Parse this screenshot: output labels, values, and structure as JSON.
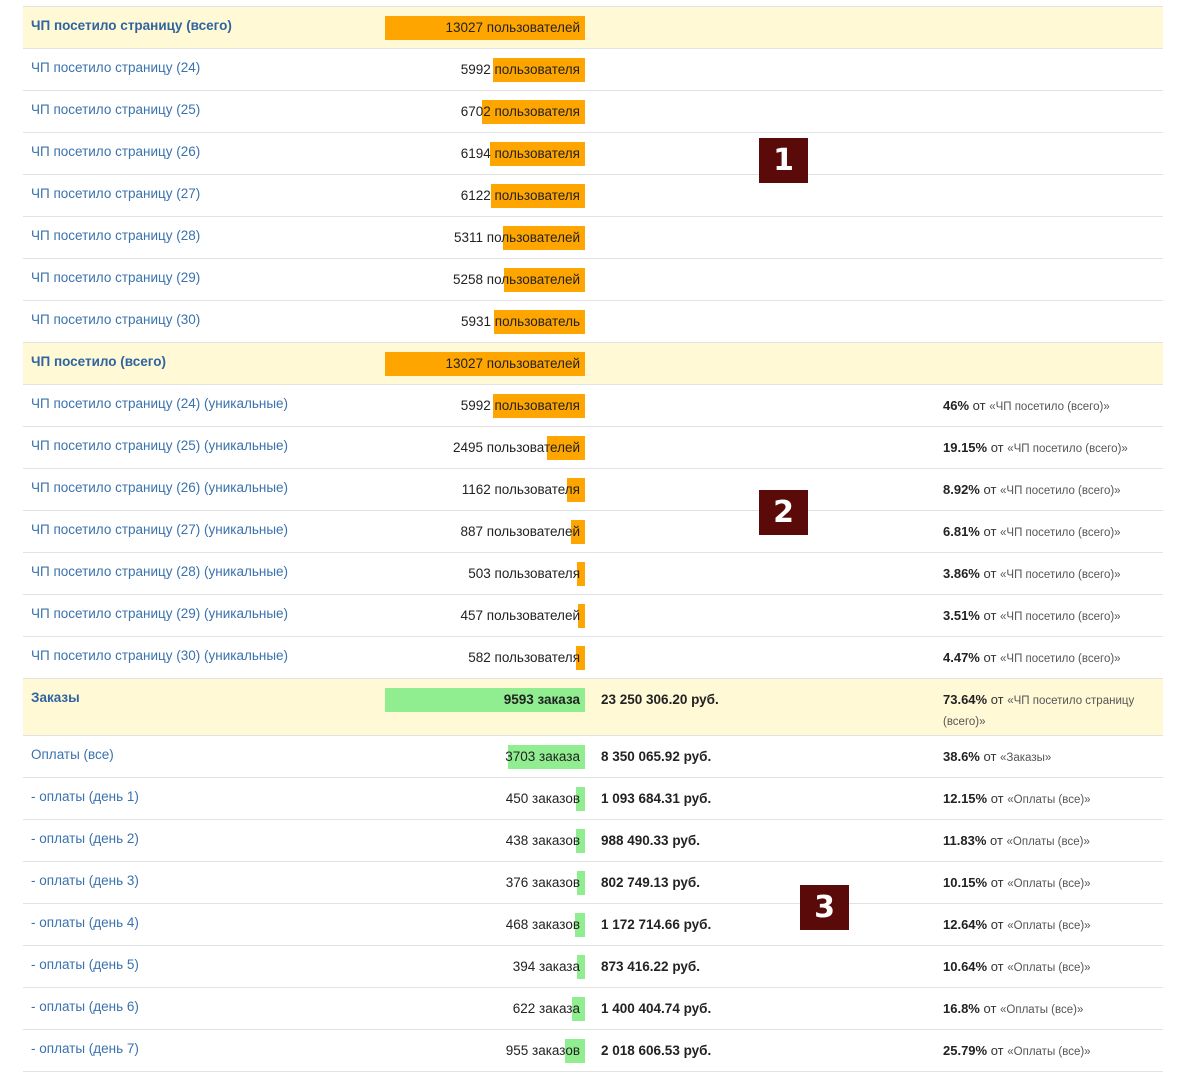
{
  "rows": [
    {
      "label": "ЧП посетило страницу (всего)",
      "count": "13027 пользователей",
      "fill": 1.0,
      "color": "orange",
      "highlight": true
    },
    {
      "label": "ЧП посетило страницу (24)",
      "count": "5992 пользователя",
      "fill": 0.46,
      "color": "orange"
    },
    {
      "label": "ЧП посетило страницу (25)",
      "count": "6702 пользователя",
      "fill": 0.514,
      "color": "orange"
    },
    {
      "label": "ЧП посетило страницу (26)",
      "count": "6194 пользователя",
      "fill": 0.475,
      "color": "orange"
    },
    {
      "label": "ЧП посетило страницу (27)",
      "count": "6122 пользователя",
      "fill": 0.47,
      "color": "orange"
    },
    {
      "label": "ЧП посетило страницу (28)",
      "count": "5311 пользователей",
      "fill": 0.408,
      "color": "orange"
    },
    {
      "label": "ЧП посетило страницу (29)",
      "count": "5258 пользователей",
      "fill": 0.404,
      "color": "orange"
    },
    {
      "label": "ЧП посетило страницу (30)",
      "count": "5931 пользователь",
      "fill": 0.455,
      "color": "orange"
    },
    {
      "label": "ЧП посетило (всего)",
      "count": "13027 пользователей",
      "fill": 1.0,
      "color": "orange",
      "highlight": true
    },
    {
      "label": "ЧП посетило страницу (24) (уникальные)",
      "count": "5992 пользователя",
      "fill": 0.46,
      "color": "orange",
      "percent": "46%",
      "of": "от",
      "ref": "«ЧП посетило (всего)»"
    },
    {
      "label": "ЧП посетило страницу (25) (уникальные)",
      "count": "2495 пользователей",
      "fill": 0.1915,
      "color": "orange",
      "percent": "19.15%",
      "of": "от",
      "ref": "«ЧП посетило (всего)»"
    },
    {
      "label": "ЧП посетило страницу (26) (уникальные)",
      "count": "1162 пользователя",
      "fill": 0.0892,
      "color": "orange",
      "percent": "8.92%",
      "of": "от",
      "ref": "«ЧП посетило (всего)»"
    },
    {
      "label": "ЧП посетило страницу (27) (уникальные)",
      "count": "887 пользователей",
      "fill": 0.0681,
      "color": "orange",
      "percent": "6.81%",
      "of": "от",
      "ref": "«ЧП посетило (всего)»"
    },
    {
      "label": "ЧП посетило страницу (28) (уникальные)",
      "count": "503 пользователя",
      "fill": 0.0386,
      "color": "orange",
      "percent": "3.86%",
      "of": "от",
      "ref": "«ЧП посетило (всего)»"
    },
    {
      "label": "ЧП посетило страницу (29) (уникальные)",
      "count": "457 пользователей",
      "fill": 0.0351,
      "color": "orange",
      "percent": "3.51%",
      "of": "от",
      "ref": "«ЧП посетило (всего)»"
    },
    {
      "label": "ЧП посетило страницу (30) (уникальные)",
      "count": "582 пользователя",
      "fill": 0.0447,
      "color": "orange",
      "percent": "4.47%",
      "of": "от",
      "ref": "«ЧП посетило (всего)»"
    },
    {
      "label": "Заказы",
      "count": "9593 заказа",
      "fill": 1.0,
      "color": "green",
      "highlight": true,
      "tall": true,
      "bold": true,
      "amount": "23 250 306.20 руб.",
      "percent": "73.64%",
      "of": "от",
      "ref": "«ЧП посетило страницу (всего)»"
    },
    {
      "label": "Оплаты (все)",
      "count": "3703 заказа",
      "fill": 0.386,
      "color": "green",
      "amount": "8 350 065.92 руб.",
      "percent": "38.6%",
      "of": "от",
      "ref": "«Заказы»"
    },
    {
      "label": "- оплаты (день 1)",
      "count": "450 заказов",
      "fill": 0.047,
      "color": "green",
      "amount": "1 093 684.31 руб.",
      "percent": "12.15%",
      "of": "от",
      "ref": "«Оплаты (все)»"
    },
    {
      "label": "- оплаты (день 2)",
      "count": "438 заказов",
      "fill": 0.0457,
      "color": "green",
      "amount": "988 490.33 руб.",
      "percent": "11.83%",
      "of": "от",
      "ref": "«Оплаты (все)»"
    },
    {
      "label": "- оплаты (день 3)",
      "count": "376 заказов",
      "fill": 0.0392,
      "color": "green",
      "amount": "802 749.13 руб.",
      "percent": "10.15%",
      "of": "от",
      "ref": "«Оплаты (все)»"
    },
    {
      "label": "- оплаты (день 4)",
      "count": "468 заказов",
      "fill": 0.0488,
      "color": "green",
      "amount": "1 172 714.66 руб.",
      "percent": "12.64%",
      "of": "от",
      "ref": "«Оплаты (все)»"
    },
    {
      "label": "- оплаты (день 5)",
      "count": "394 заказа",
      "fill": 0.0411,
      "color": "green",
      "amount": "873 416.22 руб.",
      "percent": "10.64%",
      "of": "от",
      "ref": "«Оплаты (все)»"
    },
    {
      "label": "- оплаты (день 6)",
      "count": "622 заказа",
      "fill": 0.0648,
      "color": "green",
      "amount": "1 400 404.74 руб.",
      "percent": "16.8%",
      "of": "от",
      "ref": "«Оплаты (все)»"
    },
    {
      "label": "- оплаты (день 7)",
      "count": "955 заказов",
      "fill": 0.0996,
      "color": "green",
      "amount": "2 018 606.53 руб.",
      "percent": "25.79%",
      "of": "от",
      "ref": "«Оплаты (все)»"
    }
  ],
  "badges": [
    {
      "text": "1",
      "color": "#5b0a0a"
    },
    {
      "text": "2",
      "color": "#5b0a0a"
    },
    {
      "text": "3",
      "color": "#5b0a0a"
    }
  ],
  "colors": {
    "orange": "#ffa500",
    "green": "#90ee90",
    "highlight": "#fff9d6",
    "link": "#3a72ad"
  }
}
